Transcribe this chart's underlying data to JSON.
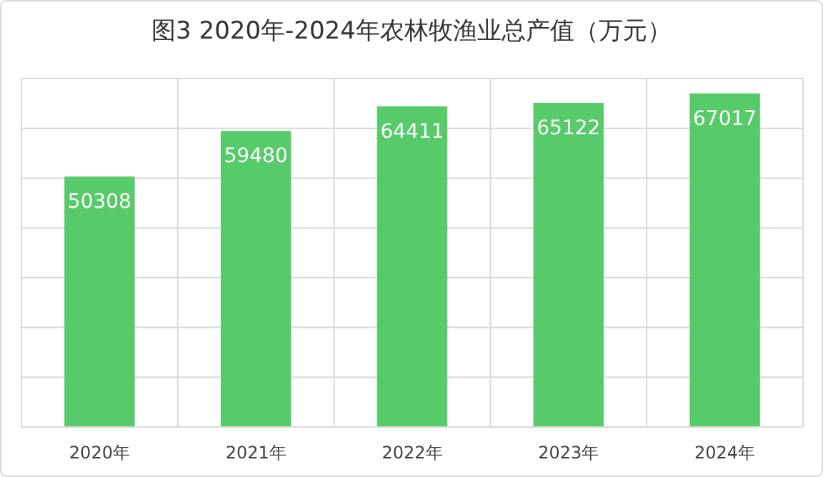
{
  "chart_data": {
    "type": "bar",
    "title": "图3  2020年-2024年农林牧渔业总产值（万元）",
    "categories": [
      "2020年",
      "2021年",
      "2022年",
      "2023年",
      "2024年"
    ],
    "values": [
      50308,
      59480,
      64411,
      65122,
      67017
    ],
    "color": "#57cb69",
    "ylim": [
      0,
      70000
    ],
    "yticks": [
      {
        "value": 0,
        "label": null
      },
      {
        "value": 10000,
        "label": null
      },
      {
        "value": 20000,
        "label": null
      },
      {
        "value": 30000,
        "label": null
      },
      {
        "value": 40000,
        "label": null
      },
      {
        "value": 50000,
        "label": null
      },
      {
        "value": 60000,
        "label": null
      },
      {
        "value": 70000,
        "label": null
      }
    ],
    "grid": true,
    "data_labels": true,
    "tick_labels": "x"
  }
}
